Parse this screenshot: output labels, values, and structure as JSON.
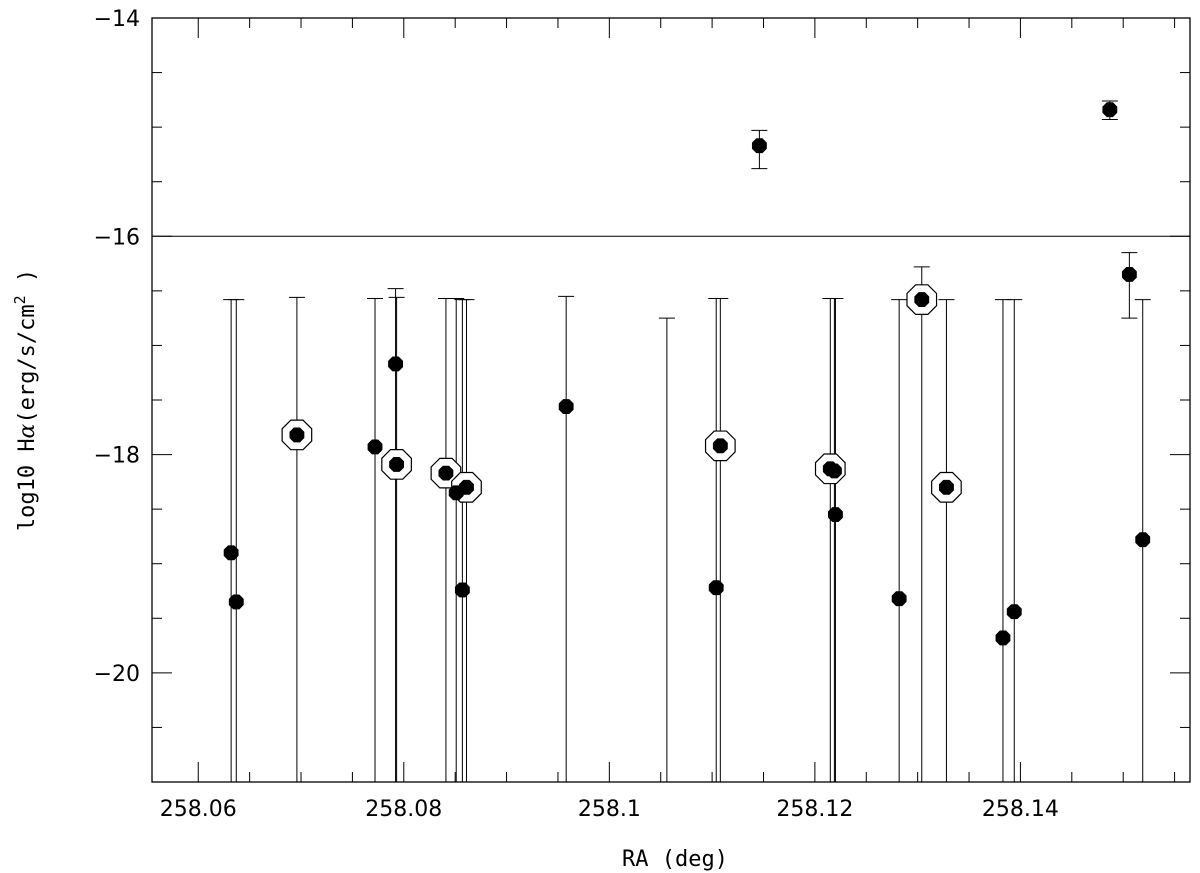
{
  "chart_data": {
    "type": "scatter",
    "xlabel": "RA (deg)",
    "ylabel_prefix": "log10 H",
    "ylabel_alpha": "α",
    "ylabel_unit": "(erg/s/cm",
    "ylabel_sup": "2",
    "ylabel_suffix": " )",
    "xlim": [
      258.0555,
      258.1565
    ],
    "ylim": [
      -21,
      -14
    ],
    "xticks": [
      258.06,
      258.08,
      258.1,
      258.12,
      258.14
    ],
    "xtick_labels": [
      "258.06",
      "258.08",
      "258.1",
      "258.12",
      "258.14"
    ],
    "yticks": [
      -20,
      -18,
      -16,
      -14
    ],
    "ytick_labels": [
      "−20",
      "−18",
      "−16",
      "−14"
    ],
    "reference_line_y": -16,
    "grid": false,
    "marker_color": "#000000",
    "points": [
      {
        "x": 258.0632,
        "y": -18.9,
        "y_upper": -16.58,
        "y_lower": -21,
        "circled": false
      },
      {
        "x": 258.0637,
        "y": -19.35,
        "y_upper": -16.58,
        "y_lower": -21,
        "circled": false
      },
      {
        "x": 258.0696,
        "y": -17.82,
        "y_upper": -16.56,
        "y_lower": -21,
        "circled": true
      },
      {
        "x": 258.0772,
        "y": -17.93,
        "y_upper": -16.57,
        "y_lower": -21,
        "circled": false
      },
      {
        "x": 258.0792,
        "y": -17.17,
        "y_upper": -16.48,
        "y_lower": -21,
        "circled": false
      },
      {
        "x": 258.0793,
        "y": -18.09,
        "y_upper": -16.56,
        "y_lower": -21,
        "circled": true
      },
      {
        "x": 258.0841,
        "y": -18.17,
        "y_upper": -16.57,
        "y_lower": -21,
        "circled": true
      },
      {
        "x": 258.0851,
        "y": -18.35,
        "y_upper": -16.57,
        "y_lower": -21,
        "circled": false
      },
      {
        "x": 258.0857,
        "y": -19.24,
        "y_upper": -16.58,
        "y_lower": -21,
        "circled": false
      },
      {
        "x": 258.0861,
        "y": -18.3,
        "y_upper": -16.58,
        "y_lower": -21,
        "circled": true
      },
      {
        "x": 258.0958,
        "y": -17.56,
        "y_upper": -16.55,
        "y_lower": -21,
        "circled": false
      },
      {
        "x": 258.1056,
        "y": null,
        "y_upper": -16.75,
        "y_lower": -21,
        "circled": false
      },
      {
        "x": 258.1104,
        "y": -19.22,
        "y_upper": -16.57,
        "y_lower": -21,
        "circled": false
      },
      {
        "x": 258.1108,
        "y": -17.92,
        "y_upper": -16.57,
        "y_lower": -21,
        "circled": true
      },
      {
        "x": 258.1146,
        "y": -15.17,
        "y_upper": -15.03,
        "y_lower": -15.38,
        "circled": false
      },
      {
        "x": 258.1215,
        "y": -18.13,
        "y_upper": -16.57,
        "y_lower": -21,
        "circled": true
      },
      {
        "x": 258.1219,
        "y": -18.15,
        "y_upper": -16.57,
        "y_lower": -21,
        "circled": false
      },
      {
        "x": 258.122,
        "y": -18.55,
        "y_upper": -16.57,
        "y_lower": -21,
        "circled": false
      },
      {
        "x": 258.1282,
        "y": -19.32,
        "y_upper": -16.58,
        "y_lower": -21,
        "circled": false
      },
      {
        "x": 258.1304,
        "y": -16.58,
        "y_upper": -16.28,
        "y_lower": -21,
        "circled": true
      },
      {
        "x": 258.1328,
        "y": -18.3,
        "y_upper": -16.58,
        "y_lower": -21,
        "circled": true
      },
      {
        "x": 258.1383,
        "y": -19.68,
        "y_upper": -16.58,
        "y_lower": -21,
        "circled": false
      },
      {
        "x": 258.1394,
        "y": -19.44,
        "y_upper": -16.58,
        "y_lower": -21,
        "circled": false
      },
      {
        "x": 258.1487,
        "y": -14.84,
        "y_upper": -14.76,
        "y_lower": -14.93,
        "circled": false
      },
      {
        "x": 258.1506,
        "y": -16.35,
        "y_upper": -16.15,
        "y_lower": -16.75,
        "circled": false
      },
      {
        "x": 258.1519,
        "y": -18.78,
        "y_upper": -16.58,
        "y_lower": -21,
        "circled": false
      }
    ]
  }
}
